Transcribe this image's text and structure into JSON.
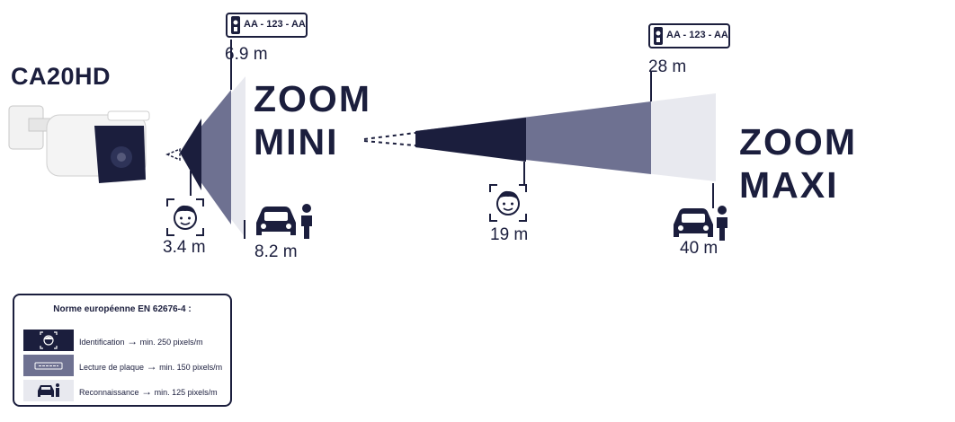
{
  "model_name": "CA20HD",
  "zoom_mini": {
    "line1": "ZOOM",
    "line2": "MINI"
  },
  "zoom_maxi": {
    "title": "ZOOM MAXI"
  },
  "plate_text": "AA - 123 - AA",
  "distances": {
    "mini_plate": "6.9 m",
    "mini_face": "3.4 m",
    "mini_recog": "8.2 m",
    "maxi_plate": "28 m",
    "maxi_face": "19 m",
    "maxi_recog": "40 m"
  },
  "legend": {
    "title": "Norme européenne EN 62676-4 :",
    "rows": [
      {
        "label": "Identification",
        "value": "min. 250 pixels/m",
        "color": "#1b1e3d"
      },
      {
        "label": "Lecture de plaque",
        "value": "min. 150 pixels/m",
        "color": "#6e7191"
      },
      {
        "label": "Reconnaissance",
        "value": "min. 125 pixels/m",
        "color": "#e8e9ef"
      }
    ]
  },
  "colors": {
    "identification": "#1b1e3d",
    "plate_reading": "#6e7191",
    "recognition": "#e8e9ef"
  }
}
